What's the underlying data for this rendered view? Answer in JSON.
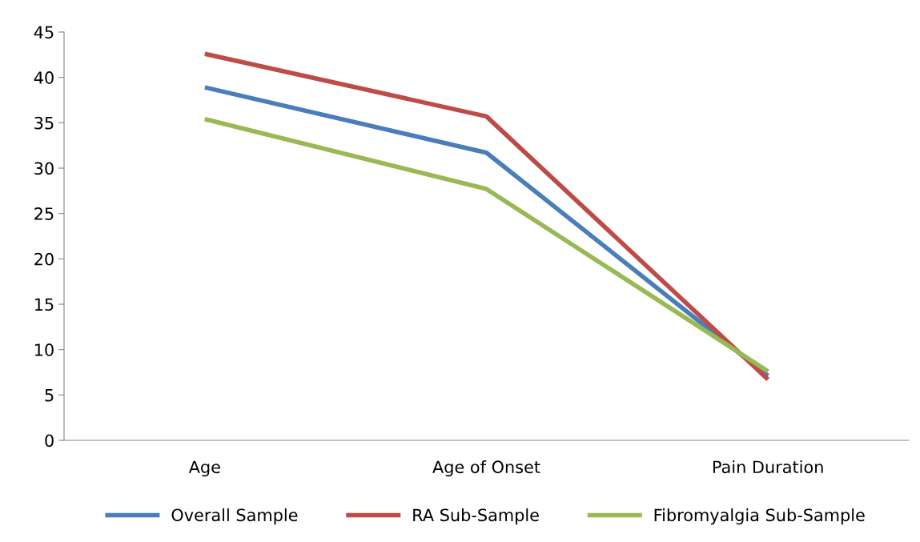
{
  "chart_data": {
    "type": "line",
    "categories": [
      "Age",
      "Age of Onset",
      "Pain Duration"
    ],
    "series": [
      {
        "name": "Overall Sample",
        "color": "#4a7ebb",
        "values": [
          38.9,
          31.7,
          7.1
        ]
      },
      {
        "name": "RA Sub-Sample",
        "color": "#be4b48",
        "values": [
          42.6,
          35.7,
          6.7
        ]
      },
      {
        "name": "Fibromyalgia Sub-Sample",
        "color": "#98b954",
        "values": [
          35.4,
          27.7,
          7.6
        ]
      }
    ],
    "ylim": [
      0,
      45
    ],
    "yticks": [
      0,
      5,
      10,
      15,
      20,
      25,
      30,
      35,
      40,
      45
    ],
    "grid": false,
    "legend": "bottom",
    "marker": "none",
    "line_style": "solid"
  }
}
